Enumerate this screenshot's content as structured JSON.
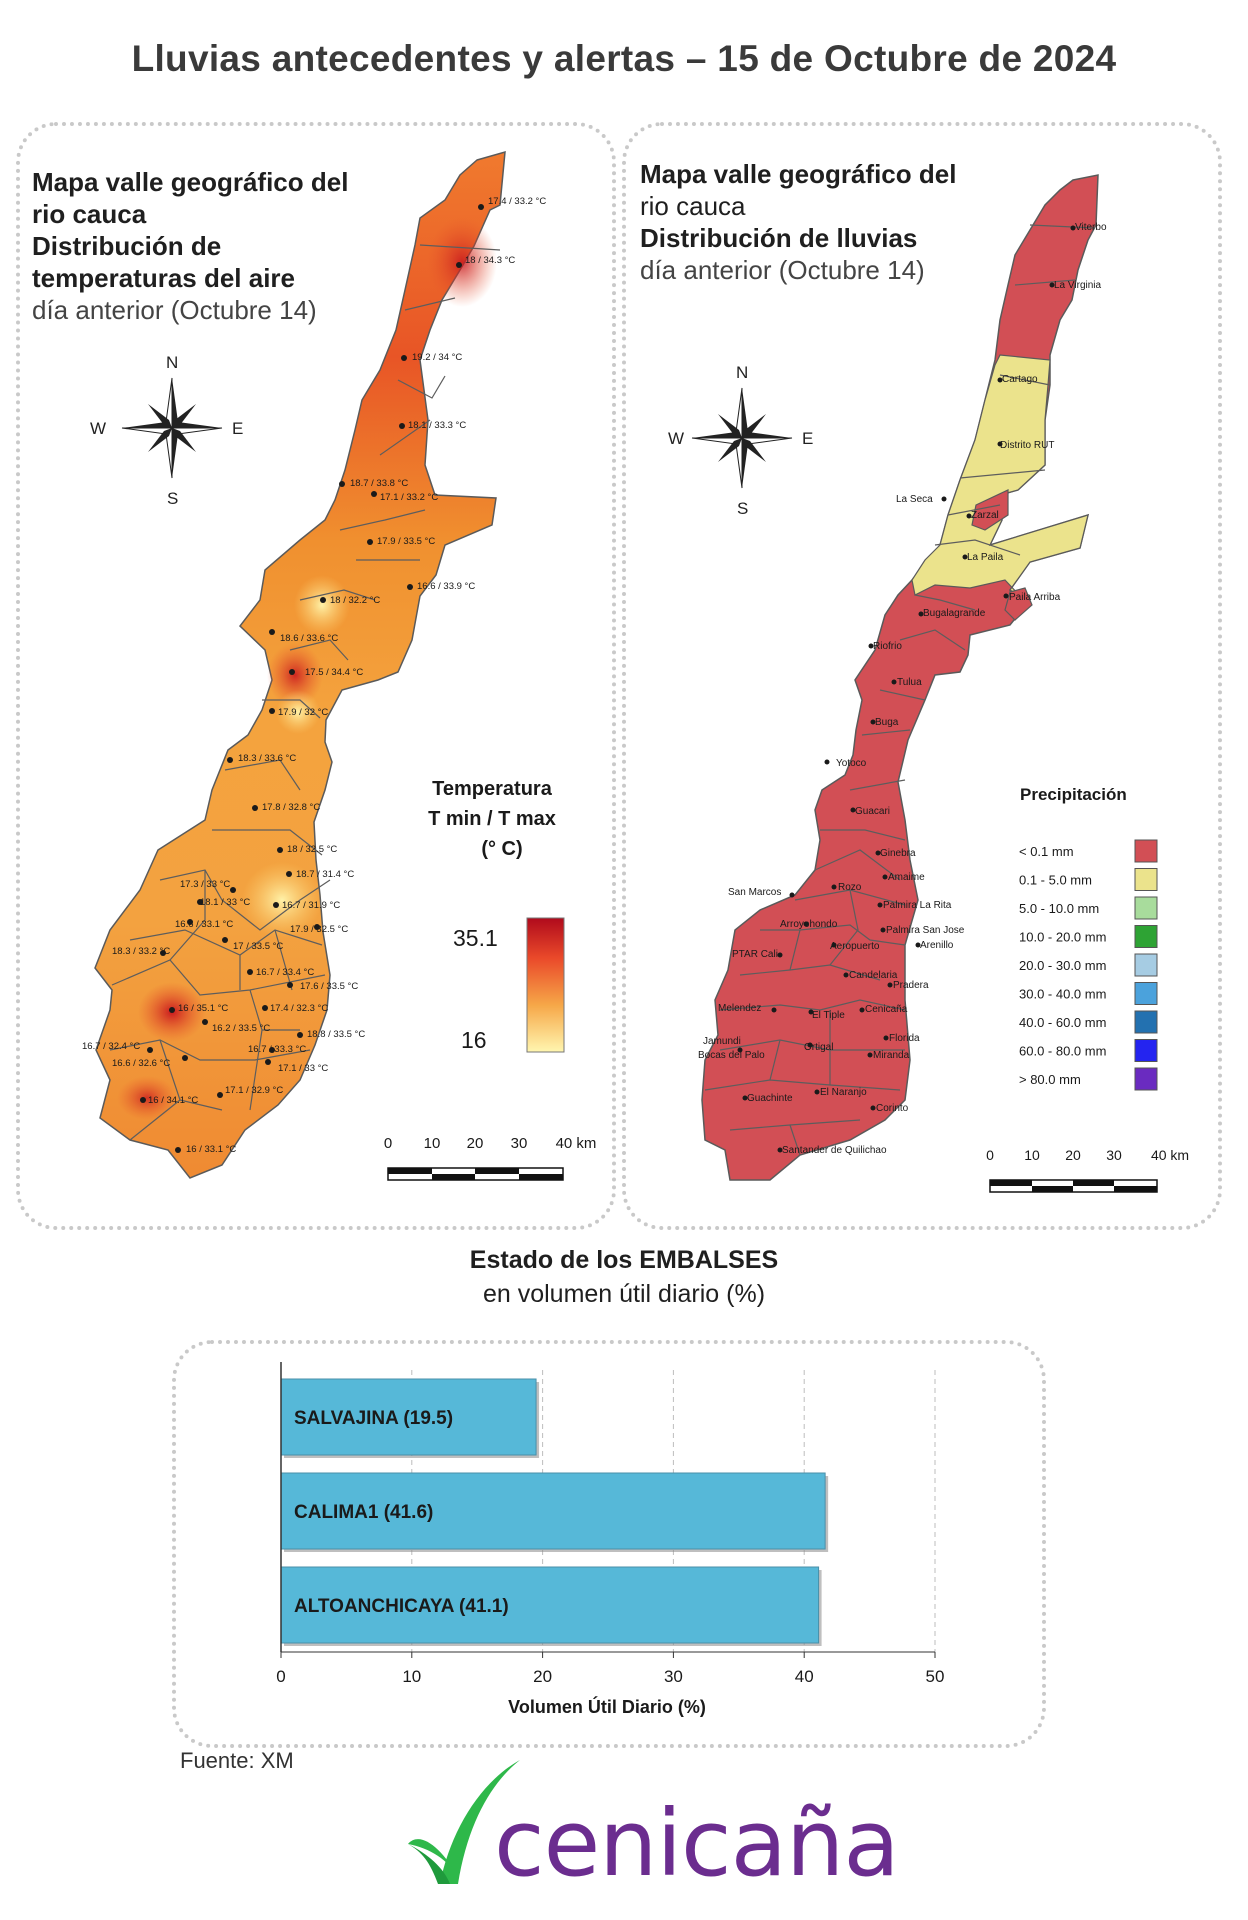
{
  "title": "Lluvias antecedentes y alertas – 15 de Octubre de 2024",
  "temp_map": {
    "title_line1": "Mapa valle geográfico del",
    "title_line2": "rio cauca",
    "title_line3": "Distribución de",
    "title_line4": "temperaturas del aire",
    "title_line5": "día anterior (Octubre 14)",
    "compass": {
      "n": "N",
      "s": "S",
      "e": "E",
      "w": "W"
    },
    "legend_title_1": "Temperatura",
    "legend_title_2": "T min / T max",
    "legend_title_3": "(° C)",
    "legend_max": "35.1",
    "legend_min": "16",
    "scale_labels": [
      "0",
      "10",
      "20",
      "30",
      "40 km"
    ],
    "stations": [
      "17.4 / 33.2 °C",
      "18 / 34.3 °C",
      "19.2 / 34 °C",
      "18.1 / 33.3 °C",
      "18.7 / 33.8 °C",
      "17.1 / 33.2 °C",
      "17.9 / 33.5 °C",
      "16.6 / 33.9 °C",
      "18 / 32.2 °C",
      "18.6 / 33.6 °C",
      "17.5 / 34.4 °C",
      "17.9 / 32 °C",
      "18.3 / 33.6 °C",
      "17.8 / 32.8 °C",
      "18 / 32.5 °C",
      "18.7 / 31.4 °C",
      "17.3 / 33 °C",
      "18.1 / 33 °C",
      "16.7 / 31.9 °C",
      "16.6 / 33.1 °C",
      "17.9 / 32.5 °C",
      "18.3 / 33.2 °C",
      "17 / 33.5 °C",
      "16.7 / 33.4 °C",
      "17.6 / 33.5 °C",
      "16 / 35.1 °C",
      "17.4 / 32.3 °C",
      "16.2 / 33.5 °C",
      "18.8 / 33.5 °C",
      "16.7 / 32.4 °C",
      "16.7 / 33.3 °C",
      "16.6 / 32.6 °C",
      "17.1 / 33 °C",
      "17.1 / 32.9 °C",
      "16 / 34.1 °C",
      "16 / 33.1 °C"
    ]
  },
  "rain_map": {
    "title_line1": "Mapa valle geográfico del",
    "title_line2": "rio cauca",
    "title_line3": "Distribución de lluvias",
    "title_line4": "día anterior (Octubre 14)",
    "compass": {
      "n": "N",
      "s": "S",
      "e": "E",
      "w": "W"
    },
    "legend_title": "Precipitación",
    "legend": [
      {
        "label": "< 0.1 mm",
        "color": "#d24f55"
      },
      {
        "label": "0.1 - 5.0 mm",
        "color": "#ebe38c"
      },
      {
        "label": "5.0 - 10.0 mm",
        "color": "#a8dc9c"
      },
      {
        "label": "10.0 - 20.0 mm",
        "color": "#2ea334"
      },
      {
        "label": "20.0 - 30.0 mm",
        "color": "#a6cce3"
      },
      {
        "label": "30.0 - 40.0 mm",
        "color": "#4ba2dc"
      },
      {
        "label": "40.0 - 60.0 mm",
        "color": "#2371b0"
      },
      {
        "label": "60.0 - 80.0 mm",
        "color": "#2424f0"
      },
      {
        "label": "> 80.0 mm",
        "color": "#6a2bc0"
      }
    ],
    "scale_labels": [
      "0",
      "10",
      "20",
      "30",
      "40 km"
    ],
    "stations": [
      "Viterbo",
      "La Virginia",
      "Cartago",
      "Distrito RUT",
      "La Seca",
      "Zarzal",
      "La Paila",
      "Paila Arriba",
      "Bugalagrande",
      "Riofrio",
      "Tulua",
      "Buga",
      "Yotoco",
      "Guacari",
      "Ginebra",
      "Amaime",
      "San Marcos",
      "Rozo",
      "Palmira La Rita",
      "Arroyohondo",
      "Palmira San Jose",
      "Aeropuerto",
      "Arenillo",
      "PTAR Cali",
      "Candelaria",
      "Pradera",
      "Melendez",
      "Cenicaña",
      "El Tiple",
      "Jamundi",
      "Bocas del Palo",
      "Florida",
      "Ortigal",
      "Miranda",
      "Guachinte",
      "El Naranjo",
      "Corinto",
      "Santander de Quilichao"
    ]
  },
  "chart_heading": {
    "line1": "Estado de los EMBALSES",
    "line2": "en volumen útil diario (%)"
  },
  "chart_data": {
    "type": "bar",
    "orientation": "horizontal",
    "categories": [
      "SALVAJINA",
      "CALIMA1",
      "ALTOANCHICAYA"
    ],
    "bar_labels": [
      "SALVAJINA (19.5)",
      "CALIMA1 (41.6)",
      "ALTOANCHICAYA (41.1)"
    ],
    "values": [
      19.5,
      41.6,
      41.1
    ],
    "xlabel": "Volumen Útil Diario (%)",
    "xlim": [
      0,
      50
    ],
    "xticks": [
      "0",
      "10",
      "20",
      "30",
      "40",
      "50"
    ],
    "grid": true,
    "bar_color": "#56b8d8"
  },
  "source": "Fuente: XM",
  "logo": "cenicaña"
}
